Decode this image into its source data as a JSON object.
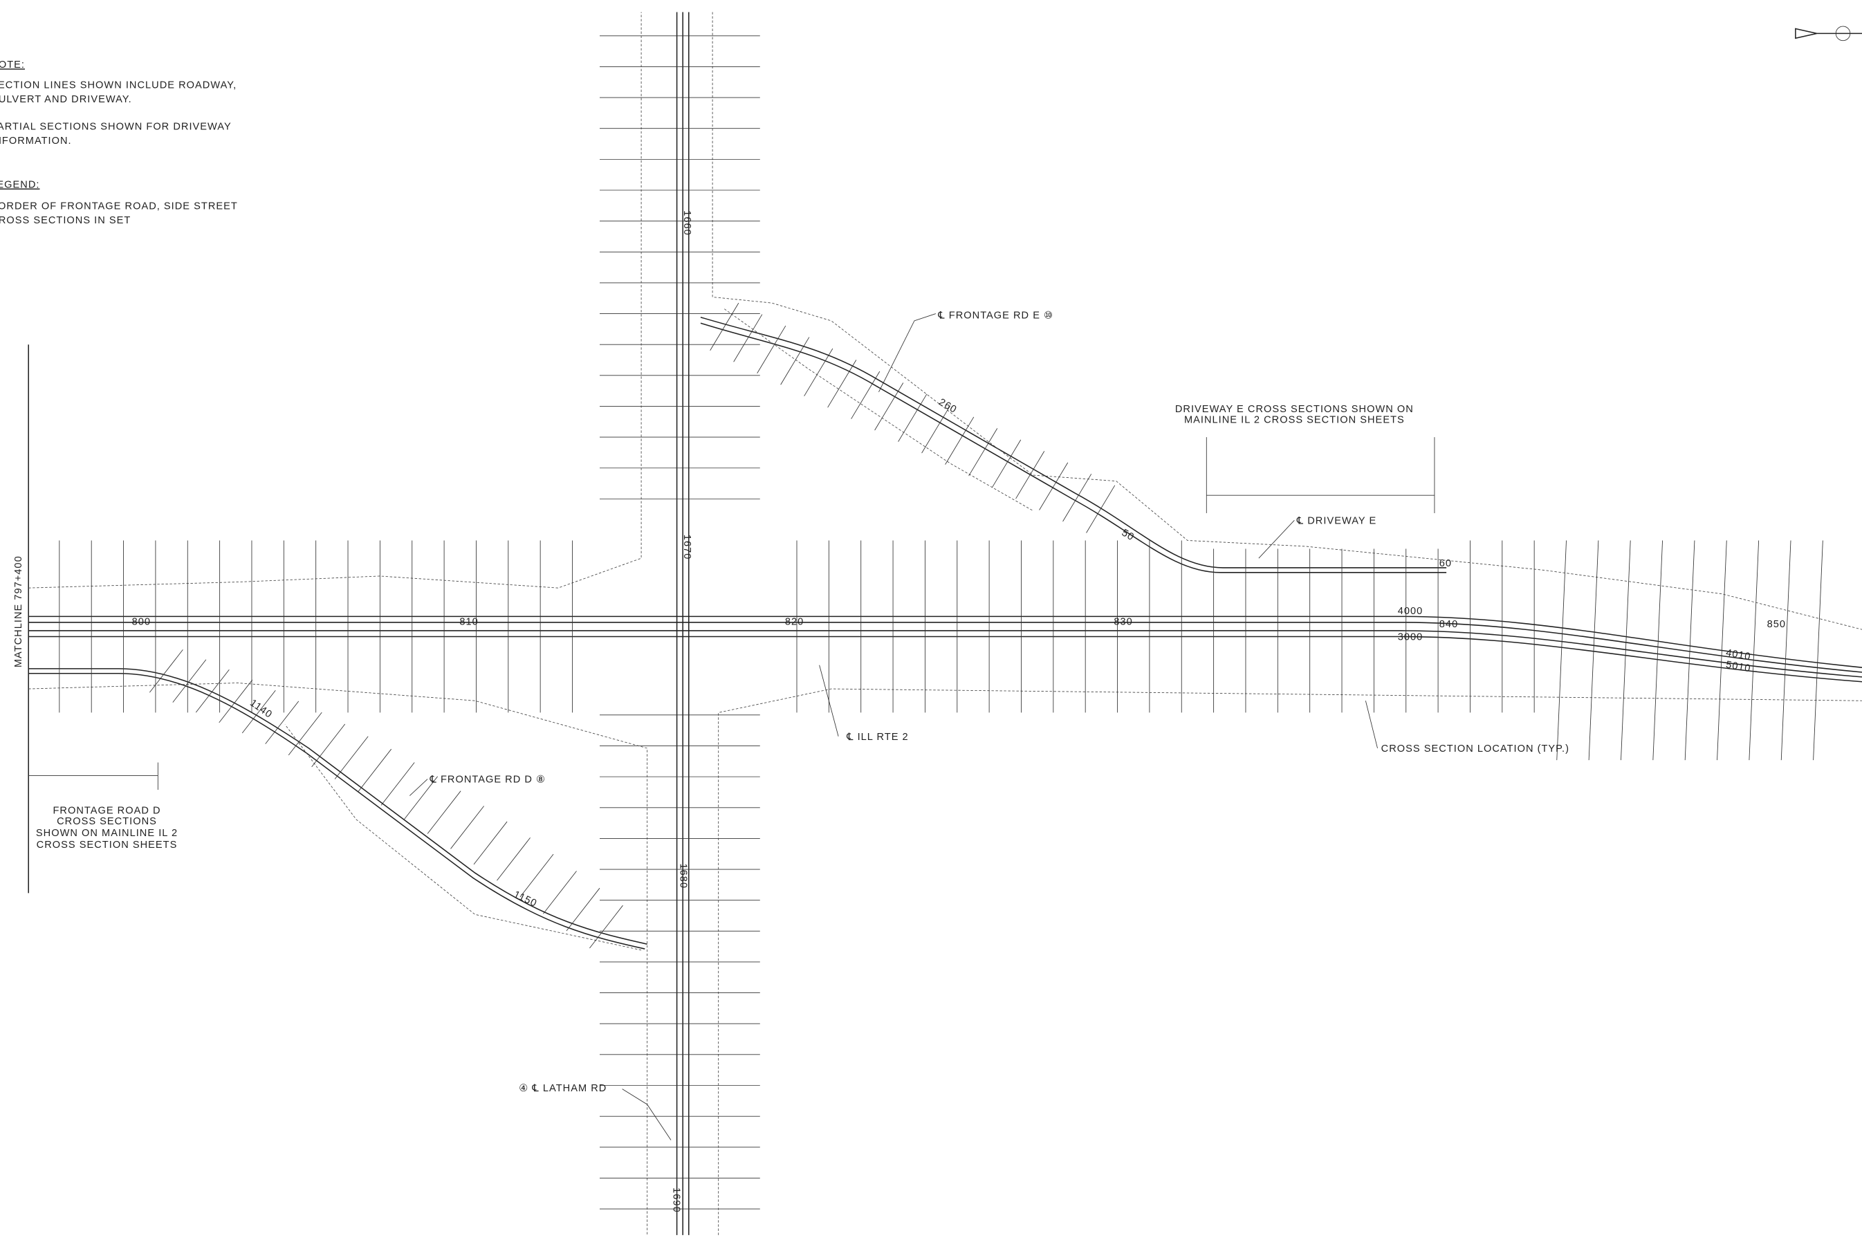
{
  "notes": {
    "heading": "NOTE:",
    "items": [
      [
        "SECTION LINES SHOWN INCLUDE ROADWAY,",
        "CULVERT AND DRIVEWAY."
      ],
      [
        "PARTIAL SECTIONS SHOWN FOR DRIVEWAY",
        "INFORMATION."
      ]
    ]
  },
  "legend": {
    "heading": "LEGEND:",
    "lines": [
      "BORDER OF FRONTAGE ROAD, SIDE STREET",
      "CROSS SECTIONS IN SET"
    ]
  },
  "matchline": "MATCHLINE 797+400",
  "frontage_d_note": [
    "FRONTAGE ROAD D",
    "CROSS SECTIONS",
    "SHOWN ON MAINLINE IL 2",
    "CROSS SECTION SHEETS"
  ],
  "driveway_e_note": [
    "DRIVEWAY E CROSS SECTIONS SHOWN ON",
    "MAINLINE IL 2 CROSS SECTION SHEETS"
  ],
  "labels": {
    "frontage_e": "℄ FRONTAGE RD E ⑩",
    "driveway_e": "℄ DRIVEWAY E",
    "ill_rte_2": "℄ ILL RTE 2",
    "cross_section": "CROSS SECTION LOCATION (TYP.)",
    "frontage_d": "℄ FRONTAGE RD D ⑧",
    "latham": "④ ℄ LATHAM RD"
  },
  "stations": {
    "mainline": [
      "800",
      "810",
      "820",
      "830",
      "840",
      "850"
    ],
    "latham": [
      "1660",
      "1670",
      "1680",
      "1690"
    ],
    "frontage_d": [
      "1140",
      "1150"
    ],
    "frontage_e": [
      "260",
      "50",
      "60"
    ],
    "ramps": [
      "4000",
      "3000",
      "4010",
      "5010"
    ]
  }
}
